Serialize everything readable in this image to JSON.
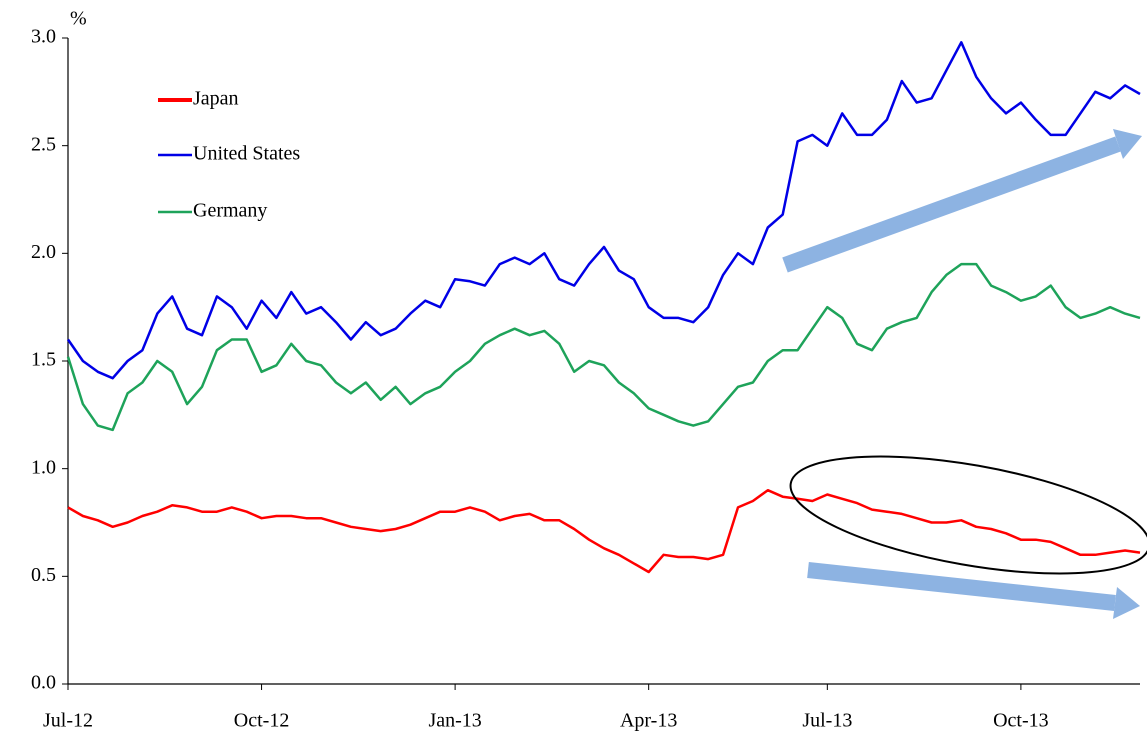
{
  "chart_data": {
    "type": "line",
    "y_unit": "%",
    "categories": [
      "Jul-12",
      null,
      null,
      null,
      null,
      null,
      null,
      null,
      null,
      null,
      null,
      null,
      null,
      "Oct-12",
      null,
      null,
      null,
      null,
      null,
      null,
      null,
      null,
      null,
      null,
      null,
      null,
      "Jan-13",
      null,
      null,
      null,
      null,
      null,
      null,
      null,
      null,
      null,
      null,
      null,
      null,
      "Apr-13",
      null,
      null,
      null,
      null,
      null,
      null,
      null,
      null,
      null,
      null,
      null,
      "Jul-13",
      null,
      null,
      null,
      null,
      null,
      null,
      null,
      null,
      null,
      null,
      null,
      null,
      "Oct-13",
      null,
      null,
      null,
      null,
      null,
      null,
      null,
      null
    ],
    "series": [
      {
        "name": "Japan",
        "color": "#ff0000",
        "values": [
          0.82,
          0.78,
          0.76,
          0.73,
          0.75,
          0.78,
          0.8,
          0.83,
          0.82,
          0.8,
          0.8,
          0.82,
          0.8,
          0.77,
          0.78,
          0.78,
          0.77,
          0.77,
          0.75,
          0.73,
          0.72,
          0.71,
          0.72,
          0.74,
          0.77,
          0.8,
          0.8,
          0.82,
          0.8,
          0.76,
          0.78,
          0.79,
          0.76,
          0.76,
          0.72,
          0.67,
          0.63,
          0.6,
          0.56,
          0.52,
          0.6,
          0.59,
          0.59,
          0.58,
          0.6,
          0.82,
          0.85,
          0.9,
          0.87,
          0.86,
          0.85,
          0.88,
          0.86,
          0.84,
          0.81,
          0.8,
          0.79,
          0.77,
          0.75,
          0.75,
          0.76,
          0.73,
          0.72,
          0.7,
          0.67,
          0.67,
          0.66,
          0.63,
          0.6,
          0.6,
          0.61,
          0.62,
          0.61
        ]
      },
      {
        "name": "United States",
        "color": "#0000e6",
        "values": [
          1.6,
          1.5,
          1.45,
          1.42,
          1.5,
          1.55,
          1.72,
          1.8,
          1.65,
          1.62,
          1.8,
          1.75,
          1.65,
          1.78,
          1.7,
          1.82,
          1.72,
          1.75,
          1.68,
          1.6,
          1.68,
          1.62,
          1.65,
          1.72,
          1.78,
          1.75,
          1.88,
          1.87,
          1.85,
          1.95,
          1.98,
          1.95,
          2.0,
          1.88,
          1.85,
          1.95,
          2.03,
          1.92,
          1.88,
          1.75,
          1.7,
          1.7,
          1.68,
          1.75,
          1.9,
          2.0,
          1.95,
          2.12,
          2.18,
          2.52,
          2.55,
          2.5,
          2.65,
          2.55,
          2.55,
          2.62,
          2.8,
          2.7,
          2.72,
          2.85,
          2.98,
          2.82,
          2.72,
          2.65,
          2.7,
          2.62,
          2.55,
          2.55,
          2.65,
          2.75,
          2.72,
          2.78,
          2.74
        ]
      },
      {
        "name": "Germany",
        "color": "#1ea35a",
        "values": [
          1.52,
          1.3,
          1.2,
          1.18,
          1.35,
          1.4,
          1.5,
          1.45,
          1.3,
          1.38,
          1.55,
          1.6,
          1.6,
          1.45,
          1.48,
          1.58,
          1.5,
          1.48,
          1.4,
          1.35,
          1.4,
          1.32,
          1.38,
          1.3,
          1.35,
          1.38,
          1.45,
          1.5,
          1.58,
          1.62,
          1.65,
          1.62,
          1.64,
          1.58,
          1.45,
          1.5,
          1.48,
          1.4,
          1.35,
          1.28,
          1.25,
          1.22,
          1.2,
          1.22,
          1.3,
          1.38,
          1.4,
          1.5,
          1.55,
          1.55,
          1.65,
          1.75,
          1.7,
          1.58,
          1.55,
          1.65,
          1.68,
          1.7,
          1.82,
          1.9,
          1.95,
          1.95,
          1.85,
          1.82,
          1.78,
          1.8,
          1.85,
          1.75,
          1.7,
          1.72,
          1.75,
          1.72,
          1.7
        ]
      }
    ],
    "ylim": [
      0,
      3
    ],
    "yticks": [
      {
        "value": 0,
        "label": "0.0"
      },
      {
        "value": 0.5,
        "label": "0.5"
      },
      {
        "value": 1,
        "label": "1.0"
      },
      {
        "value": 1.5,
        "label": "1.5"
      },
      {
        "value": 2,
        "label": "2.0"
      },
      {
        "value": 2.5,
        "label": "2.5"
      },
      {
        "value": 3,
        "label": "3.0"
      }
    ],
    "legend": "upper-left"
  }
}
